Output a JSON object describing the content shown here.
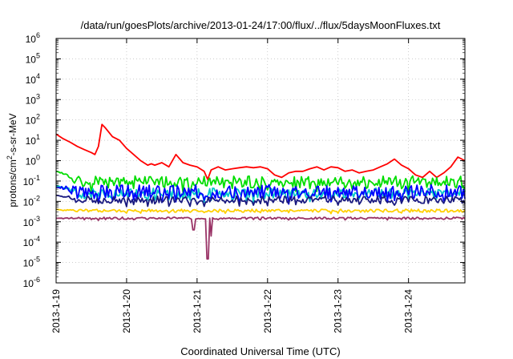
{
  "chart_data": {
    "type": "line",
    "title": "/data/run/goesPlots/archive/2013-01-24/17:00/flux/../flux/5daysMoonFluxes.txt",
    "xlabel": "Coordinated Universal Time (UTC)",
    "ylabel": {
      "base": "protons/cm",
      "sup": "2",
      "rest": "-s-sr-MeV"
    },
    "y_scale": "log",
    "ylim": [
      1e-06,
      1000000.0
    ],
    "y_ticks": [
      {
        "value": 1e-06,
        "base": "10",
        "exp": "-6"
      },
      {
        "value": 1e-05,
        "base": "10",
        "exp": "-5"
      },
      {
        "value": 0.0001,
        "base": "10",
        "exp": "-4"
      },
      {
        "value": 0.001,
        "base": "10",
        "exp": "-3"
      },
      {
        "value": 0.01,
        "base": "10",
        "exp": "-2"
      },
      {
        "value": 0.1,
        "base": "10",
        "exp": "-1"
      },
      {
        "value": 1.0,
        "base": "10",
        "exp": "0"
      },
      {
        "value": 10.0,
        "base": "10",
        "exp": "1"
      },
      {
        "value": 100.0,
        "base": "10",
        "exp": "2"
      },
      {
        "value": 1000.0,
        "base": "10",
        "exp": "3"
      },
      {
        "value": 10000.0,
        "base": "10",
        "exp": "4"
      },
      {
        "value": 100000.0,
        "base": "10",
        "exp": "5"
      },
      {
        "value": 1000000.0,
        "base": "10",
        "exp": "6"
      }
    ],
    "xlim": [
      0,
      5.8
    ],
    "x_ticks": [
      {
        "value": 0,
        "label": "2013-1-19"
      },
      {
        "value": 1,
        "label": "2013-1-20"
      },
      {
        "value": 2,
        "label": "2013-1-21"
      },
      {
        "value": 3,
        "label": "2013-1-22"
      },
      {
        "value": 4,
        "label": "2013-1-23"
      },
      {
        "value": 5,
        "label": "2013-1-24"
      }
    ],
    "grid": true,
    "series": [
      {
        "color": "#ff0000",
        "x": [
          0,
          0.1,
          0.2,
          0.3,
          0.4,
          0.5,
          0.55,
          0.6,
          0.65,
          0.7,
          0.8,
          0.9,
          1.0,
          1.1,
          1.2,
          1.3,
          1.35,
          1.4,
          1.5,
          1.6,
          1.7,
          1.8,
          1.9,
          2.0,
          2.1,
          2.15,
          2.2,
          2.3,
          2.4,
          2.5,
          2.6,
          2.7,
          2.8,
          2.9,
          3.0,
          3.1,
          3.2,
          3.3,
          3.4,
          3.5,
          3.6,
          3.7,
          3.8,
          3.9,
          4.0,
          4.1,
          4.2,
          4.3,
          4.4,
          4.5,
          4.6,
          4.7,
          4.8,
          4.9,
          5.0,
          5.1,
          5.2,
          5.3,
          5.4,
          5.5,
          5.6,
          5.7,
          5.8
        ],
        "y": [
          20,
          12,
          8,
          5,
          3.5,
          2.5,
          2,
          5,
          60,
          40,
          15,
          10,
          4,
          2,
          1,
          0.6,
          0.7,
          0.6,
          0.8,
          0.5,
          2,
          0.8,
          0.6,
          0.5,
          0.3,
          0.12,
          0.35,
          0.5,
          0.35,
          0.4,
          0.45,
          0.5,
          0.45,
          0.5,
          0.4,
          0.2,
          0.15,
          0.25,
          0.3,
          0.3,
          0.4,
          0.5,
          0.35,
          0.5,
          0.45,
          0.3,
          0.35,
          0.25,
          0.3,
          0.35,
          0.5,
          0.7,
          1.2,
          0.6,
          0.4,
          0.2,
          0.15,
          0.3,
          0.15,
          0.25,
          0.5,
          1.5,
          1
        ]
      },
      {
        "color": "#00dd00",
        "base": 0.09,
        "amp": 0.6,
        "seed": 1,
        "start": 0.3
      },
      {
        "color": "#00c8c8",
        "base": 0.025,
        "amp": 0.5,
        "seed": 2,
        "start": 0.06
      },
      {
        "color": "#0000ff",
        "base": 0.03,
        "amp": 0.7,
        "seed": 3,
        "start": 0.05
      },
      {
        "color": "#1a1a80",
        "base": 0.012,
        "amp": 0.35,
        "seed": 4,
        "start": 0.02
      },
      {
        "color": "#ffd000",
        "base": 0.0035,
        "amp": 0.15,
        "seed": 5,
        "start": 0.004
      },
      {
        "color": "#993366",
        "base": 0.0015,
        "amp": 0.1,
        "seed": 6,
        "start": 0.0015,
        "dips": [
          [
            1.95,
            0.0004
          ],
          [
            2.15,
            1.5e-05
          ],
          [
            2.2,
            0.0002
          ]
        ]
      }
    ]
  }
}
